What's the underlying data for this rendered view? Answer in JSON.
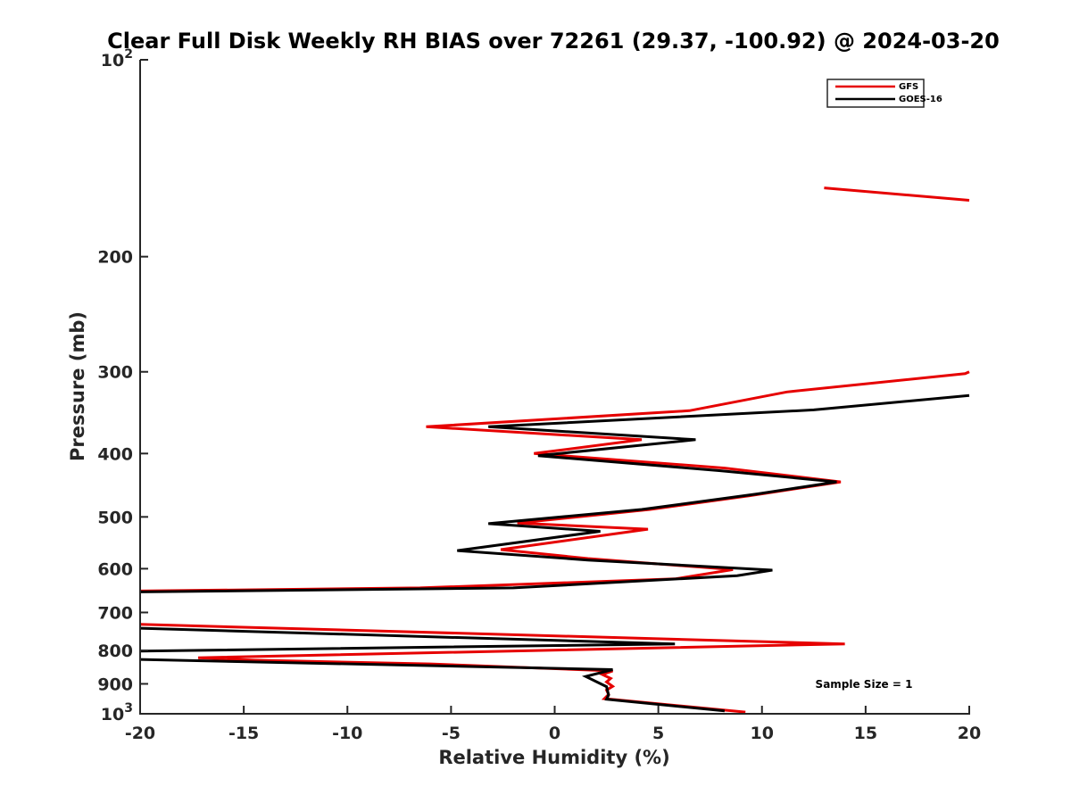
{
  "chart_data": {
    "type": "line",
    "title": "Clear Full Disk Weekly RH BIAS over 72261 (29.37, -100.92) @ 2024-03-20",
    "xlabel": "Relative Humidity (%)",
    "ylabel": "Pressure (mb)",
    "xlim": [
      -20,
      20
    ],
    "ylim": [
      100,
      1000
    ],
    "yscale": "log",
    "y_reversed": true,
    "grid": false,
    "legend_position": "top-right",
    "x_ticks": [
      "-20",
      "-15",
      "-10",
      "-5",
      "0",
      "5",
      "10",
      "15",
      "20"
    ],
    "y_ticks": [
      {
        "value": 100,
        "base": "10",
        "exp": "2"
      },
      {
        "value": 200,
        "base": "200",
        "exp": ""
      },
      {
        "value": 300,
        "base": "300",
        "exp": ""
      },
      {
        "value": 400,
        "base": "400",
        "exp": ""
      },
      {
        "value": 500,
        "base": "500",
        "exp": ""
      },
      {
        "value": 600,
        "base": "600",
        "exp": ""
      },
      {
        "value": 700,
        "base": "700",
        "exp": ""
      },
      {
        "value": 800,
        "base": "800",
        "exp": ""
      },
      {
        "value": 900,
        "base": "900",
        "exp": ""
      },
      {
        "value": 1000,
        "base": "10",
        "exp": "3"
      }
    ],
    "annotation": "Sample Size = 1",
    "series": [
      {
        "name": "GFS",
        "color": "#e60000",
        "segments": [
          [
            [
              13.0,
              157
            ],
            [
              20.0,
              164
            ]
          ],
          [
            [
              20.0,
              300
            ],
            [
              19.8,
              302
            ],
            [
              11.2,
              322
            ],
            [
              6.5,
              344
            ],
            [
              -6.2,
              364
            ],
            [
              4.2,
              381
            ],
            [
              -1.0,
              400
            ],
            [
              8.2,
              421
            ],
            [
              13.8,
              442
            ],
            [
              9.4,
              464
            ],
            [
              4.6,
              487
            ],
            [
              -1.8,
              511
            ],
            [
              4.5,
              522
            ],
            [
              -2.6,
              561
            ],
            [
              1.6,
              579
            ],
            [
              8.6,
              602
            ],
            [
              5.8,
              622
            ],
            [
              -6.5,
              642
            ],
            [
              -20.0,
              649
            ]
          ],
          [
            [
              -20.0,
              730
            ],
            [
              14.0,
              782
            ],
            [
              -17.2,
              821
            ],
            [
              -14.5,
              828
            ],
            [
              -6.0,
              839
            ],
            [
              2.8,
              860
            ],
            [
              2.3,
              871
            ],
            [
              2.7,
              883
            ],
            [
              2.5,
              894
            ],
            [
              2.8,
              908
            ],
            [
              2.5,
              920
            ],
            [
              2.6,
              934
            ],
            [
              2.4,
              948
            ],
            [
              9.2,
              994
            ]
          ]
        ]
      },
      {
        "name": "GOES-16",
        "color": "#000000",
        "segments": [
          [
            [
              20.0,
              326
            ],
            [
              12.5,
              343
            ],
            [
              -3.2,
              364
            ],
            [
              6.8,
              381
            ],
            [
              -0.8,
              403
            ],
            [
              8.0,
              425
            ],
            [
              13.6,
              442
            ],
            [
              9.8,
              461
            ],
            [
              4.2,
              487
            ],
            [
              -3.2,
              512
            ],
            [
              2.2,
              526
            ],
            [
              -4.7,
              563
            ],
            [
              1.6,
              582
            ],
            [
              10.5,
              603
            ],
            [
              8.8,
              615
            ],
            [
              -2.0,
              642
            ],
            [
              -20.0,
              651
            ]
          ],
          [
            [
              -20.0,
              740
            ],
            [
              5.8,
              782
            ],
            [
              -20.0,
              802
            ]
          ],
          [
            [
              -20.0,
              826
            ],
            [
              2.8,
              856
            ],
            [
              1.5,
              877
            ],
            [
              2.5,
              909
            ],
            [
              2.6,
              936
            ],
            [
              2.5,
              950
            ],
            [
              8.2,
              990
            ]
          ]
        ]
      }
    ]
  }
}
